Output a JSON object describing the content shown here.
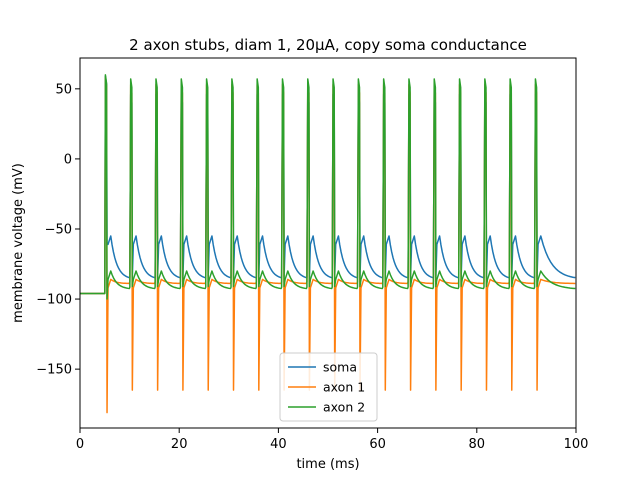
{
  "chart_data": {
    "type": "line",
    "title": "2 axon stubs, diam 1, 20µA, copy soma conductance",
    "xlabel": "time (ms)",
    "ylabel": "membrane voltage (mV)",
    "xlim": [
      0,
      100
    ],
    "ylim": [
      -192,
      72
    ],
    "xticks": [
      0,
      20,
      40,
      60,
      80,
      100
    ],
    "yticks": [
      -150,
      -100,
      -50,
      0,
      50
    ],
    "grid": false,
    "legend": {
      "placement": "bottom-center"
    },
    "stimulus_onset_ms": 5,
    "spike_times_ms": [
      5.0,
      10.1,
      15.2,
      20.3,
      25.4,
      30.5,
      35.6,
      40.7,
      45.8,
      50.9,
      56.0,
      61.1,
      66.2,
      71.3,
      76.4,
      81.5,
      86.6,
      91.7
    ],
    "series": [
      {
        "name": "soma",
        "color": "#1f77b4",
        "rest": -96,
        "peak": 46,
        "trough": -86,
        "first_peak": 59,
        "first_trough": -60,
        "after_plateau": -55
      },
      {
        "name": "axon 1",
        "color": "#ff7f0e",
        "rest": -96,
        "peak": 53,
        "trough": -89,
        "first_peak": 58,
        "first_trough": -181,
        "spike_trough": -165,
        "after_plateau": -86
      },
      {
        "name": "axon 2",
        "color": "#2ca02c",
        "rest": -96,
        "peak": 57,
        "trough": -93,
        "first_peak": 60,
        "first_trough": -100,
        "after_plateau": -80
      }
    ]
  }
}
